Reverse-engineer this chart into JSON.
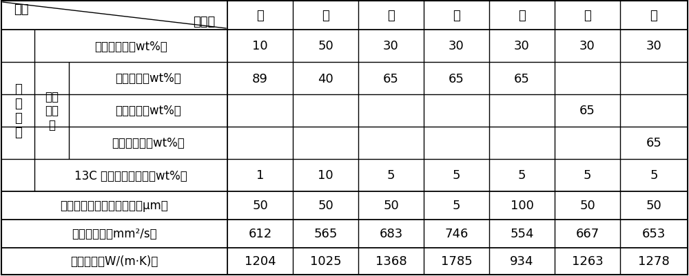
{
  "header_col1": "项目",
  "header_col2": "实施例",
  "header_cols": [
    "一",
    "二",
    "三",
    "四",
    "五",
    "六",
    "七"
  ],
  "row_graphene_oxide": {
    "label": "氧化石墨烯（wt%）",
    "values": [
      "10",
      "50",
      "30",
      "30",
      "30",
      "30",
      "30"
    ]
  },
  "row_pva": {
    "label": "聚乙烯醇（wt%）",
    "values": [
      "89",
      "40",
      "65",
      "65",
      "65",
      "",
      ""
    ]
  },
  "row_pai": {
    "label": "聚酰亚胺（wt%）",
    "values": [
      "",
      "",
      "",
      "",
      "",
      "65",
      ""
    ]
  },
  "row_pam": {
    "label": "聚丙烯酰胺（wt%）",
    "values": [
      "",
      "",
      "",
      "",
      "",
      "",
      "65"
    ]
  },
  "row_13c": {
    "label": "13C 同位素合成石墨（wt%）",
    "values": [
      "1",
      "10",
      "5",
      "5",
      "5",
      "5",
      "5"
    ]
  },
  "row_thickness": {
    "label": "高定向热解石墨膜的厚度（μm）",
    "values": [
      "50",
      "50",
      "50",
      "5",
      "100",
      "50",
      "50"
    ]
  },
  "row_diffusivity": {
    "label": "热扩散系数（mm²/s）",
    "values": [
      "612",
      "565",
      "683",
      "746",
      "554",
      "667",
      "653"
    ]
  },
  "row_conductivity": {
    "label": "导热系数（W/(m·K)）",
    "values": [
      "1204",
      "1025",
      "1368",
      "1785",
      "934",
      "1263",
      "1278"
    ]
  },
  "left_label_mixed": "混\n合\n溶\n液",
  "left_label_conductive": "导电\n高分\n子",
  "bg_color": "#ffffff",
  "border_color": "#000000",
  "font_size": 13,
  "font_size_data": 13,
  "font_size_small": 11
}
